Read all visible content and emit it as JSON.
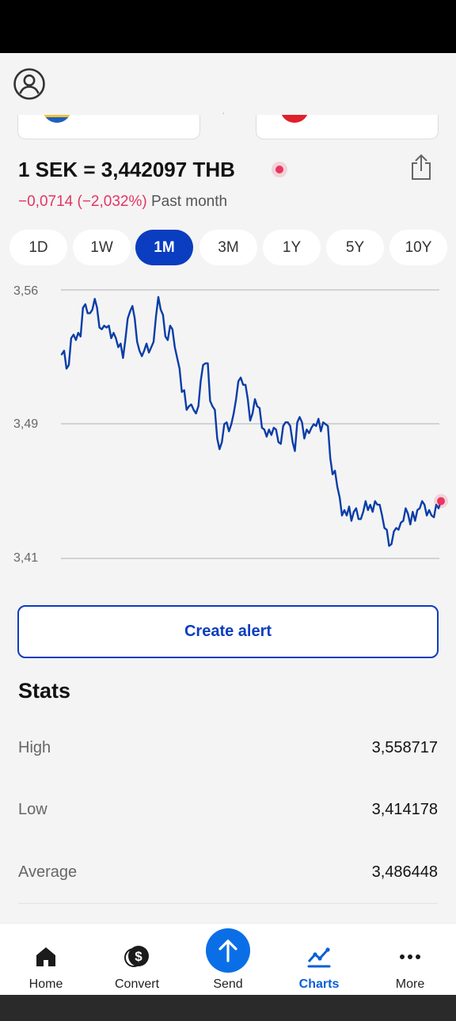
{
  "rate": {
    "title": "1 SEK = 3,442097 THB",
    "change": "−0,0714 (−2,032%)",
    "period": "Past month"
  },
  "ranges": [
    "1D",
    "1W",
    "1M",
    "3M",
    "1Y",
    "5Y",
    "10Y"
  ],
  "selected_range": "1M",
  "chart_data": {
    "type": "line",
    "ylim": [
      3.41,
      3.56
    ],
    "y_ticks": [
      "3,56",
      "3,49",
      "3,41"
    ],
    "grid": true,
    "series": [
      {
        "values": [
          3.524,
          3.526,
          3.516,
          3.518,
          3.533,
          3.535,
          3.532,
          3.536,
          3.534,
          3.55,
          3.552,
          3.547,
          3.547,
          3.549,
          3.555,
          3.55,
          3.539,
          3.538,
          3.54,
          3.539,
          3.54,
          3.533,
          3.536,
          3.533,
          3.528,
          3.53,
          3.522,
          3.532,
          3.544,
          3.548,
          3.551,
          3.544,
          3.531,
          3.526,
          3.523,
          3.526,
          3.53,
          3.525,
          3.528,
          3.531,
          3.545,
          3.556,
          3.549,
          3.546,
          3.534,
          3.532,
          3.54,
          3.538,
          3.528,
          3.522,
          3.516,
          3.503,
          3.504,
          3.493,
          3.495,
          3.496,
          3.493,
          3.491,
          3.495,
          3.509,
          3.518,
          3.519,
          3.519,
          3.498,
          3.495,
          3.493,
          3.477,
          3.471,
          3.475,
          3.485,
          3.486,
          3.481,
          3.485,
          3.491,
          3.499,
          3.509,
          3.511,
          3.507,
          3.507,
          3.499,
          3.487,
          3.491,
          3.499,
          3.495,
          3.494,
          3.483,
          3.482,
          3.478,
          3.482,
          3.479,
          3.483,
          3.482,
          3.475,
          3.474,
          3.484,
          3.486,
          3.486,
          3.484,
          3.475,
          3.47,
          3.486,
          3.489,
          3.486,
          3.477,
          3.482,
          3.48,
          3.483,
          3.485,
          3.484,
          3.488,
          3.481,
          3.486,
          3.485,
          3.484,
          3.466,
          3.457,
          3.459,
          3.45,
          3.444,
          3.434,
          3.437,
          3.434,
          3.439,
          3.431,
          3.436,
          3.438,
          3.432,
          3.432,
          3.436,
          3.442,
          3.437,
          3.44,
          3.436,
          3.442,
          3.44,
          3.44,
          3.434,
          3.427,
          3.426,
          3.417,
          3.418,
          3.425,
          3.427,
          3.426,
          3.43,
          3.431,
          3.438,
          3.435,
          3.429,
          3.436,
          3.431,
          3.437,
          3.438,
          3.442,
          3.44,
          3.434,
          3.437,
          3.434,
          3.433,
          3.44,
          3.438,
          3.442
        ]
      }
    ]
  },
  "create_alert_label": "Create alert",
  "stats": {
    "title": "Stats",
    "rows": [
      {
        "label": "High",
        "value": "3,558717"
      },
      {
        "label": "Low",
        "value": "3,414178"
      },
      {
        "label": "Average",
        "value": "3,486448"
      }
    ]
  },
  "nav": [
    {
      "label": "Home",
      "icon": "home-icon"
    },
    {
      "label": "Convert",
      "icon": "dollar-coin-icon"
    },
    {
      "label": "Send",
      "icon": "arrow-up-icon"
    },
    {
      "label": "Charts",
      "icon": "chart-line-icon",
      "active": true
    },
    {
      "label": "More",
      "icon": "more-dots-icon"
    }
  ],
  "colors": {
    "accent": "#0a3dbf",
    "line": "#0a3da8",
    "negative": "#e33562",
    "nav_active": "#0a5fd6"
  }
}
